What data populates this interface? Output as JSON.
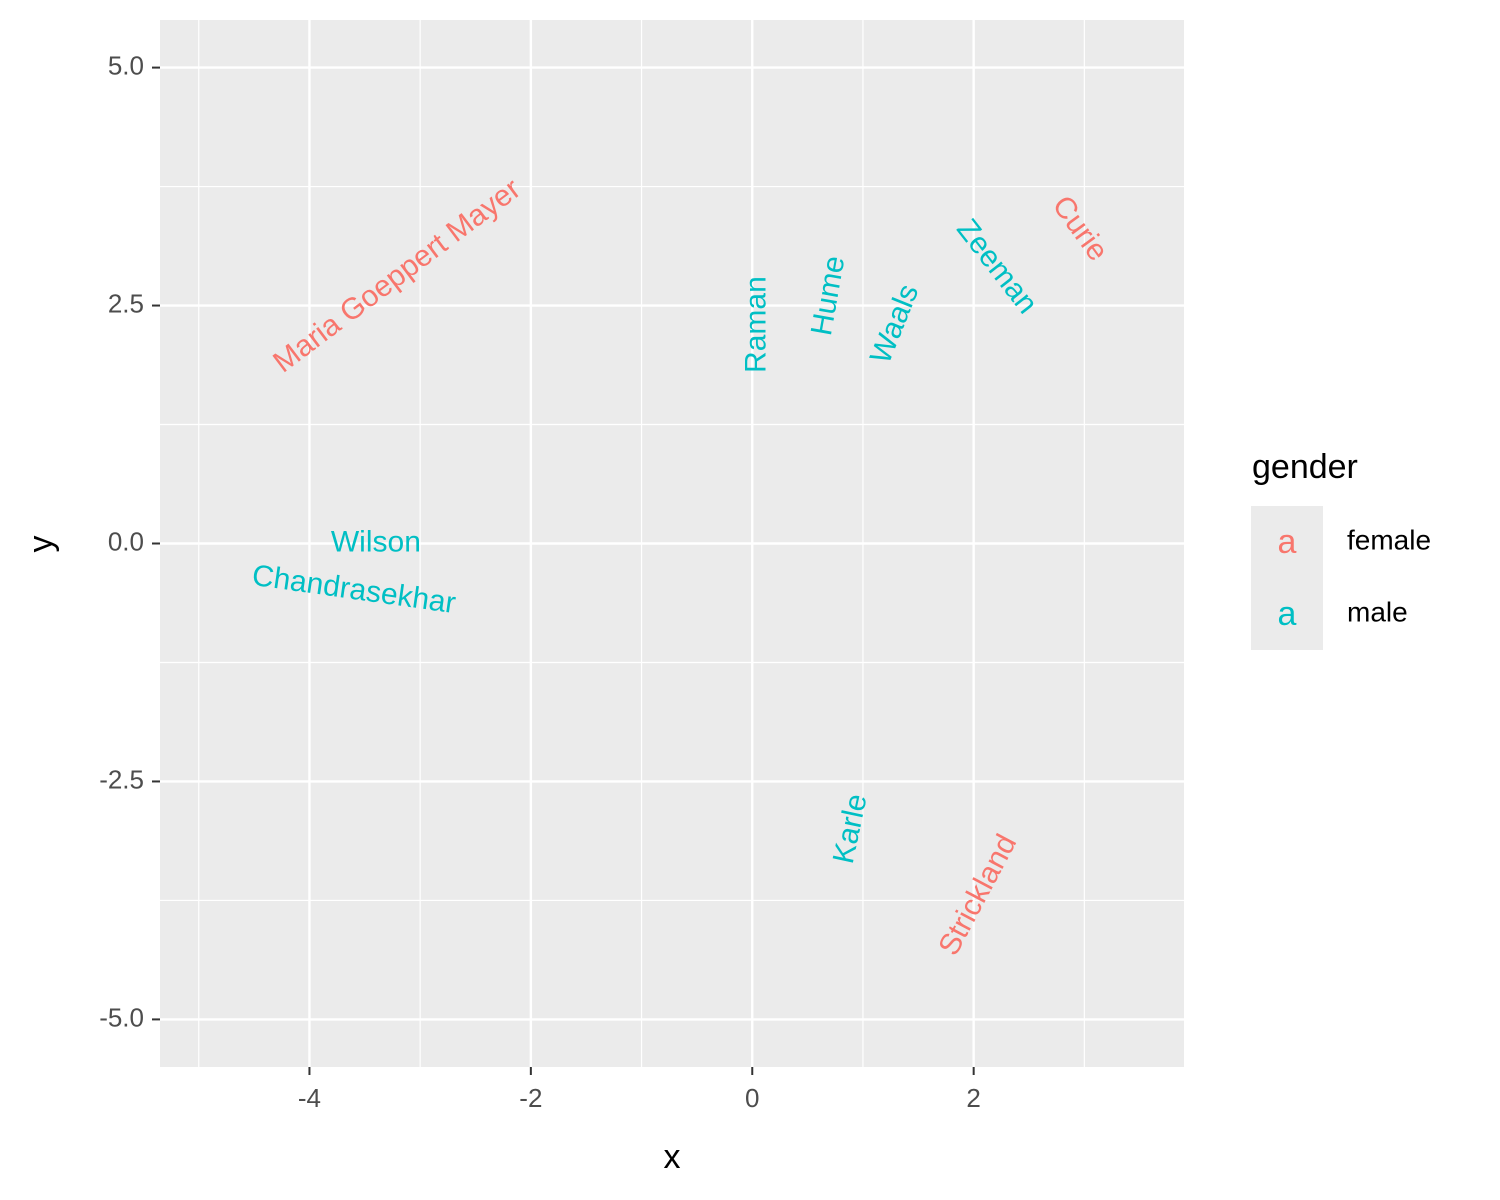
{
  "chart_data": {
    "type": "scatter",
    "geom": "text",
    "xlabel": "x",
    "ylabel": "y",
    "xlim": [
      -5.35,
      3.9
    ],
    "ylim": [
      -5.5,
      5.5
    ],
    "x_ticks": [
      -4,
      -2,
      0,
      2
    ],
    "x_tick_labels": [
      "-4",
      "-2",
      "0",
      "2"
    ],
    "y_ticks": [
      -5,
      -2.5,
      0,
      2.5,
      5
    ],
    "y_tick_labels": [
      "-5.0",
      "-2.5",
      "0.0",
      "2.5",
      "5.0"
    ],
    "grid": true,
    "background": "#ebebeb",
    "legend": {
      "title": "gender",
      "placement": "right",
      "key_glyph": "a",
      "entries": [
        {
          "label": "female",
          "color": "#f8766d"
        },
        {
          "label": "male",
          "color": "#00bfc4"
        }
      ]
    },
    "labeled_points": [
      {
        "text": "Maria Goeppert Mayer",
        "x": -3.2,
        "y": 2.8,
        "angle": 37,
        "gender": "female"
      },
      {
        "text": "Curie",
        "x": 2.95,
        "y": 3.3,
        "angle": -54,
        "gender": "female"
      },
      {
        "text": "Strickland",
        "x": 2.05,
        "y": -3.7,
        "angle": 62,
        "gender": "female"
      },
      {
        "text": "Raman",
        "x": 0.05,
        "y": 2.3,
        "angle": 90,
        "gender": "male"
      },
      {
        "text": "Waals",
        "x": 1.3,
        "y": 2.3,
        "angle": 68,
        "gender": "male"
      },
      {
        "text": "Zeeman",
        "x": 2.2,
        "y": 2.9,
        "angle": -52,
        "gender": "male"
      },
      {
        "text": "Hume",
        "x": 0.7,
        "y": 2.6,
        "angle": 80,
        "gender": "male"
      },
      {
        "text": "Wilson",
        "x": -3.4,
        "y": 0.0,
        "angle": 0,
        "gender": "male"
      },
      {
        "text": "Chandrasekhar",
        "x": -3.6,
        "y": -0.5,
        "angle": -8,
        "gender": "male"
      },
      {
        "text": "Karle",
        "x": 0.9,
        "y": -3.0,
        "angle": 78,
        "gender": "male"
      }
    ]
  }
}
